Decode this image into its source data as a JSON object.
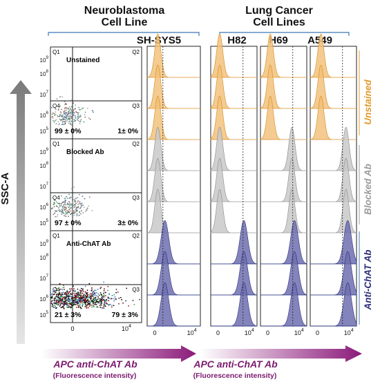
{
  "header": {
    "neuro_line1": "Neuroblastoma",
    "neuro_line2": "Cell Line",
    "neuro_cell": "SH-SYS5",
    "lung_line1": "Lung Cancer",
    "lung_line2": "Cell Lines",
    "lung_cells": [
      "H82",
      "H69",
      "A549"
    ]
  },
  "axes": {
    "y_arrow_label": "SSC-A",
    "x_arrow_label_left": "APC anti-ChAT Ab",
    "x_arrow_sub_left": "(Fluorescence intensity)",
    "x_arrow_label_right": "APC anti-ChAT Ab",
    "x_arrow_sub_right": "(Fluorescence intensity)"
  },
  "quadrant_labels": [
    "Q1",
    "Q2",
    "Q3",
    "Q4"
  ],
  "conditions": [
    {
      "name": "Unstained",
      "color": "#e39a2b"
    },
    {
      "name": "Blocked Ab",
      "color": "#9b9b9b"
    },
    {
      "name": "Anti-ChAT Ab",
      "color": "#2b2f7a"
    }
  ],
  "colors": {
    "unstained_fill": "#f2c27c",
    "blocked_fill": "#c9c9c9",
    "antichat_fill": "#6e6fb0",
    "bracket_blue": "#3c78b5",
    "arrow_purple": "#8b1a7a",
    "arrow_gray": "#808080"
  },
  "chart_data": [
    {
      "type": "scatter",
      "panel": "Unstained",
      "ytick_labels": [
        "10^9",
        "10^8",
        "10^7",
        "10^6",
        "10^5"
      ],
      "quadrants": {
        "Q4": "99 ± 0%",
        "Q3": "1± 0%"
      }
    },
    {
      "type": "scatter",
      "panel": "Blocked Ab",
      "ytick_labels": [
        "10^9",
        "10^8",
        "10^7",
        "10^6",
        "10^5"
      ],
      "quadrants": {
        "Q4": "97 ± 0%",
        "Q3": "3± 0%"
      }
    },
    {
      "type": "scatter",
      "panel": "Anti-ChAT Ab",
      "ytick_labels": [
        "10^9",
        "10^8",
        "10^7",
        "10^6",
        "10^5"
      ],
      "xtick_labels": [
        "0",
        "10^4"
      ],
      "quadrants": {
        "Q4": "21 ± 3%",
        "Q3": "79 ± 3%"
      }
    },
    {
      "type": "area",
      "panel": "SH-SYS5 histograms",
      "xtick_labels": [
        "0",
        "10^4"
      ],
      "replicates_per_condition": 3,
      "peak_position": [
        {
          "condition": "Unstained",
          "x": 0.5
        },
        {
          "condition": "Blocked Ab",
          "x": 0.5
        },
        {
          "condition": "Anti-ChAT Ab",
          "x": 1.2
        }
      ]
    },
    {
      "type": "area",
      "panel": "H82 histograms",
      "xtick_labels": [
        "0",
        "10^4"
      ],
      "replicates_per_condition": 3,
      "peak_position": [
        {
          "condition": "Unstained",
          "x": 0.4
        },
        {
          "condition": "Blocked Ab",
          "x": 0.4
        },
        {
          "condition": "Anti-ChAT Ab",
          "x": 3.2
        }
      ]
    },
    {
      "type": "area",
      "panel": "H69 histograms",
      "xtick_labels": [
        "0",
        "10^4"
      ],
      "replicates_per_condition": 3,
      "peak_position": [
        {
          "condition": "Unstained",
          "x": 0.5
        },
        {
          "condition": "Blocked Ab",
          "x": 3.0
        },
        {
          "condition": "Anti-ChAT Ab",
          "x": 3.3
        }
      ]
    },
    {
      "type": "area",
      "panel": "A549 histograms",
      "xtick_labels": [
        "0",
        "10^4"
      ],
      "replicates_per_condition": 3,
      "peak_position": [
        {
          "condition": "Unstained",
          "x": 0.6
        },
        {
          "condition": "Blocked Ab",
          "x": 3.5
        },
        {
          "condition": "Anti-ChAT Ab",
          "x": 3.7
        }
      ]
    }
  ]
}
